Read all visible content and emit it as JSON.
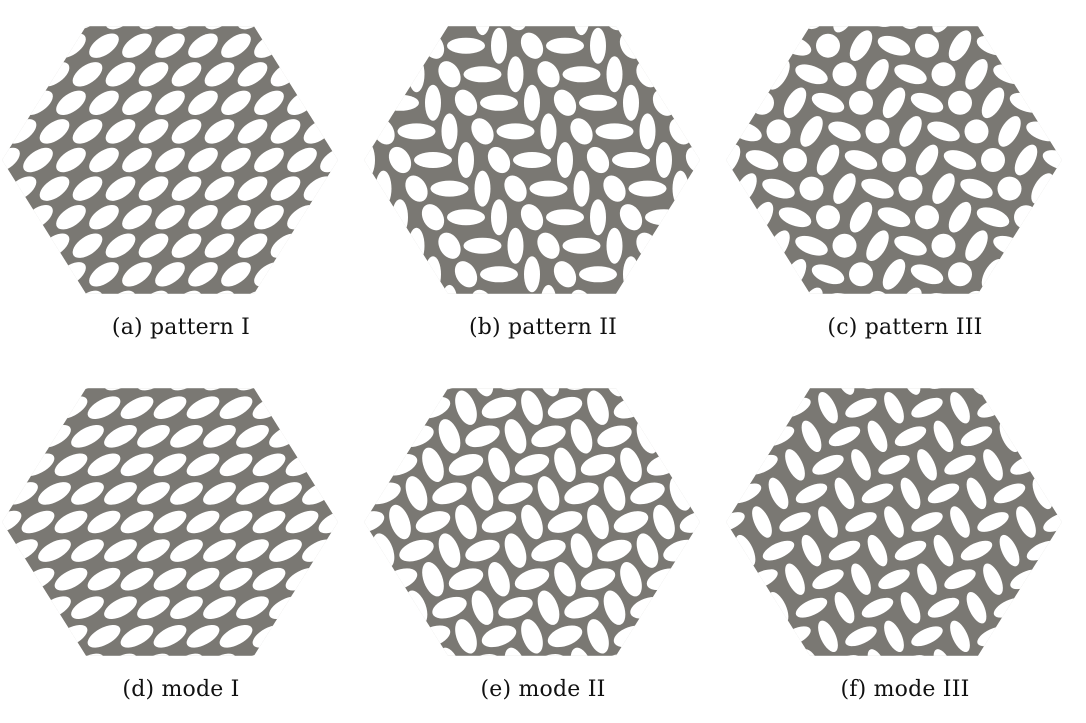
{
  "figure": {
    "colors": {
      "material": "#7a7873",
      "hole": "#ffffff"
    },
    "panels": [
      {
        "id": "a",
        "caption": "(a) pattern I",
        "style": "uniform-tilted"
      },
      {
        "id": "b",
        "caption": "(b) pattern II",
        "style": "alternating-orthogonal"
      },
      {
        "id": "c",
        "caption": "(c) pattern III",
        "style": "circles-and-tilted"
      },
      {
        "id": "d",
        "caption": "(d) mode I",
        "style": "uniform-tilted-deformed"
      },
      {
        "id": "e",
        "caption": "(e) mode II",
        "style": "alternating-tilted"
      },
      {
        "id": "f",
        "caption": "(f) mode III",
        "style": "alternating-slim"
      }
    ]
  }
}
